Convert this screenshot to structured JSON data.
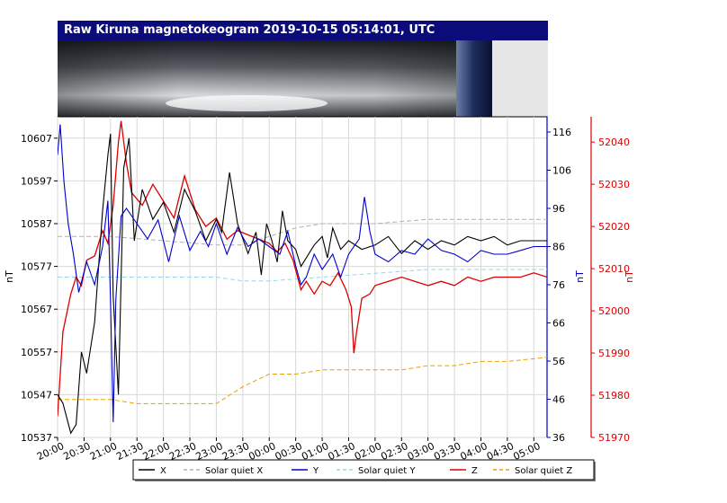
{
  "header": {
    "title": "Raw Kiruna magnetokeogram 2019-10-15 05:14:01, UTC"
  },
  "colors": {
    "title_bar": "#0b0b7a",
    "x": "#000000",
    "y": "#0000cc",
    "z": "#dd0000",
    "solar_quiet_x": "#b0b0b0",
    "solar_quiet_y": "#99d6e6",
    "solar_quiet_z": "#e6a000",
    "grid": "#d8d8d8"
  },
  "legend": {
    "items": [
      {
        "label": "X",
        "color": "#000000",
        "dash": false
      },
      {
        "label": "Solar quiet X",
        "color": "#b0b0b0",
        "dash": true
      },
      {
        "label": "Y",
        "color": "#0000cc",
        "dash": false
      },
      {
        "label": "Solar quiet Y",
        "color": "#99d6e6",
        "dash": true
      },
      {
        "label": "Z",
        "color": "#dd0000",
        "dash": false
      },
      {
        "label": "Solar quiet Z",
        "color": "#e6a000",
        "dash": true
      }
    ]
  },
  "chart_data": {
    "type": "line",
    "grid": true,
    "legend_position": "bottom",
    "x_ticks": [
      "20:00",
      "20:30",
      "21:00",
      "21:30",
      "22:00",
      "22:30",
      "23:00",
      "23:30",
      "00:00",
      "00:30",
      "01:00",
      "01:30",
      "02:00",
      "02:30",
      "03:00",
      "03:30",
      "04:00",
      "04:30",
      "05:00"
    ],
    "x_range_hours": [
      0,
      9.25
    ],
    "axes": {
      "x_left": {
        "label": "nT",
        "ylim": [
          10537,
          10612
        ],
        "ticks": [
          10537,
          10547,
          10557,
          10567,
          10577,
          10587,
          10597,
          10607
        ]
      },
      "y_right": {
        "label": "nT",
        "ylim": [
          36,
          120
        ],
        "ticks": [
          36,
          46,
          56,
          66,
          76,
          86,
          96,
          106,
          116
        ]
      },
      "z_right": {
        "label": "nT",
        "ylim": [
          51970,
          52046
        ],
        "ticks": [
          51970,
          51980,
          51990,
          52000,
          52010,
          52020,
          52030,
          52040
        ]
      }
    },
    "series": [
      {
        "name": "X",
        "axis": "x_left",
        "points": [
          [
            0,
            10547
          ],
          [
            0.1,
            10545
          ],
          [
            0.25,
            10538
          ],
          [
            0.35,
            10540
          ],
          [
            0.45,
            10557
          ],
          [
            0.55,
            10552
          ],
          [
            0.7,
            10564
          ],
          [
            0.85,
            10590
          ],
          [
            0.95,
            10603
          ],
          [
            1.0,
            10608
          ],
          [
            1.05,
            10570
          ],
          [
            1.15,
            10547
          ],
          [
            1.25,
            10600
          ],
          [
            1.35,
            10607
          ],
          [
            1.45,
            10583
          ],
          [
            1.6,
            10595
          ],
          [
            1.8,
            10588
          ],
          [
            2.0,
            10592
          ],
          [
            2.2,
            10585
          ],
          [
            2.4,
            10595
          ],
          [
            2.6,
            10590
          ],
          [
            2.8,
            10583
          ],
          [
            3.0,
            10588
          ],
          [
            3.1,
            10585
          ],
          [
            3.25,
            10599
          ],
          [
            3.4,
            10587
          ],
          [
            3.6,
            10580
          ],
          [
            3.75,
            10585
          ],
          [
            3.85,
            10575
          ],
          [
            3.95,
            10587
          ],
          [
            4.05,
            10583
          ],
          [
            4.15,
            10578
          ],
          [
            4.25,
            10590
          ],
          [
            4.35,
            10583
          ],
          [
            4.5,
            10581
          ],
          [
            4.6,
            10577
          ],
          [
            4.7,
            10579
          ],
          [
            4.85,
            10582
          ],
          [
            5.0,
            10584
          ],
          [
            5.1,
            10579
          ],
          [
            5.2,
            10586
          ],
          [
            5.35,
            10581
          ],
          [
            5.5,
            10583
          ],
          [
            5.75,
            10581
          ],
          [
            6.0,
            10582
          ],
          [
            6.25,
            10584
          ],
          [
            6.5,
            10580
          ],
          [
            6.75,
            10583
          ],
          [
            7.0,
            10581
          ],
          [
            7.25,
            10583
          ],
          [
            7.5,
            10582
          ],
          [
            7.75,
            10584
          ],
          [
            8.0,
            10583
          ],
          [
            8.25,
            10584
          ],
          [
            8.5,
            10582
          ],
          [
            8.75,
            10583
          ],
          [
            9.0,
            10583
          ],
          [
            9.25,
            10583
          ]
        ]
      },
      {
        "name": "Solar quiet X",
        "axis": "x_left",
        "points": [
          [
            0,
            10584
          ],
          [
            1,
            10584
          ],
          [
            2,
            10583
          ],
          [
            3,
            10582
          ],
          [
            3.5,
            10582
          ],
          [
            4,
            10584
          ],
          [
            4.5,
            10586
          ],
          [
            5,
            10587
          ],
          [
            6,
            10587
          ],
          [
            7,
            10588
          ],
          [
            8,
            10588
          ],
          [
            9.25,
            10588
          ]
        ]
      },
      {
        "name": "Y",
        "axis": "x_right_y",
        "points": [
          [
            0,
            110
          ],
          [
            0.05,
            118
          ],
          [
            0.12,
            103
          ],
          [
            0.2,
            92
          ],
          [
            0.3,
            84
          ],
          [
            0.4,
            74
          ],
          [
            0.55,
            82
          ],
          [
            0.7,
            76
          ],
          [
            0.85,
            86
          ],
          [
            0.95,
            98
          ],
          [
            1.0,
            72
          ],
          [
            1.05,
            40
          ],
          [
            1.1,
            72
          ],
          [
            1.2,
            94
          ],
          [
            1.3,
            96
          ],
          [
            1.5,
            92
          ],
          [
            1.7,
            88
          ],
          [
            1.9,
            93
          ],
          [
            2.1,
            82
          ],
          [
            2.3,
            94
          ],
          [
            2.5,
            85
          ],
          [
            2.7,
            90
          ],
          [
            2.85,
            86
          ],
          [
            3.0,
            92
          ],
          [
            3.2,
            84
          ],
          [
            3.4,
            91
          ],
          [
            3.6,
            86
          ],
          [
            3.8,
            88
          ],
          [
            4.0,
            86
          ],
          [
            4.2,
            84
          ],
          [
            4.35,
            90
          ],
          [
            4.5,
            81
          ],
          [
            4.6,
            76
          ],
          [
            4.7,
            78
          ],
          [
            4.85,
            84
          ],
          [
            5.0,
            80
          ],
          [
            5.2,
            84
          ],
          [
            5.35,
            78
          ],
          [
            5.5,
            84
          ],
          [
            5.7,
            88
          ],
          [
            5.8,
            99
          ],
          [
            5.9,
            90
          ],
          [
            6.0,
            84
          ],
          [
            6.25,
            82
          ],
          [
            6.5,
            85
          ],
          [
            6.75,
            84
          ],
          [
            7.0,
            88
          ],
          [
            7.25,
            85
          ],
          [
            7.5,
            84
          ],
          [
            7.75,
            82
          ],
          [
            8.0,
            85
          ],
          [
            8.25,
            84
          ],
          [
            8.5,
            84
          ],
          [
            8.75,
            85
          ],
          [
            9.0,
            86
          ],
          [
            9.25,
            86
          ]
        ]
      },
      {
        "name": "Solar quiet Y",
        "axis": "y_right",
        "points": [
          [
            0,
            78
          ],
          [
            1,
            78
          ],
          [
            2,
            78
          ],
          [
            3,
            78
          ],
          [
            3.5,
            77
          ],
          [
            4,
            77
          ],
          [
            5,
            78
          ],
          [
            6,
            79
          ],
          [
            7,
            80
          ],
          [
            8,
            80
          ],
          [
            9.25,
            80
          ]
        ]
      },
      {
        "name": "Z",
        "axis": "z_right",
        "points": [
          [
            0,
            51975
          ],
          [
            0.1,
            51995
          ],
          [
            0.25,
            52004
          ],
          [
            0.35,
            52008
          ],
          [
            0.45,
            52006
          ],
          [
            0.55,
            52012
          ],
          [
            0.7,
            52013
          ],
          [
            0.85,
            52019
          ],
          [
            0.95,
            52016
          ],
          [
            1.05,
            52025
          ],
          [
            1.15,
            52040
          ],
          [
            1.2,
            52045
          ],
          [
            1.3,
            52035
          ],
          [
            1.4,
            52028
          ],
          [
            1.6,
            52025
          ],
          [
            1.8,
            52030
          ],
          [
            2.0,
            52026
          ],
          [
            2.2,
            52022
          ],
          [
            2.4,
            52032
          ],
          [
            2.6,
            52024
          ],
          [
            2.8,
            52020
          ],
          [
            3.0,
            52022
          ],
          [
            3.2,
            52017
          ],
          [
            3.4,
            52019
          ],
          [
            3.6,
            52018
          ],
          [
            3.8,
            52017
          ],
          [
            4.0,
            52016
          ],
          [
            4.15,
            52014
          ],
          [
            4.3,
            52016
          ],
          [
            4.45,
            52012
          ],
          [
            4.6,
            52005
          ],
          [
            4.7,
            52007
          ],
          [
            4.85,
            52004
          ],
          [
            5.0,
            52007
          ],
          [
            5.15,
            52006
          ],
          [
            5.3,
            52009
          ],
          [
            5.45,
            52005
          ],
          [
            5.55,
            52001
          ],
          [
            5.6,
            51990
          ],
          [
            5.65,
            51995
          ],
          [
            5.75,
            52003
          ],
          [
            5.9,
            52004
          ],
          [
            6.0,
            52006
          ],
          [
            6.25,
            52007
          ],
          [
            6.5,
            52008
          ],
          [
            6.75,
            52007
          ],
          [
            7.0,
            52006
          ],
          [
            7.25,
            52007
          ],
          [
            7.5,
            52006
          ],
          [
            7.75,
            52008
          ],
          [
            8.0,
            52007
          ],
          [
            8.25,
            52008
          ],
          [
            8.5,
            52008
          ],
          [
            8.75,
            52008
          ],
          [
            9.0,
            52009
          ],
          [
            9.25,
            52008
          ]
        ]
      },
      {
        "name": "Solar quiet Z",
        "axis": "z_right",
        "points": [
          [
            0,
            51979
          ],
          [
            0.5,
            51979
          ],
          [
            1.0,
            51979
          ],
          [
            1.5,
            51978
          ],
          [
            2.0,
            51978
          ],
          [
            2.5,
            51978
          ],
          [
            3.0,
            51978
          ],
          [
            3.5,
            51982
          ],
          [
            4.0,
            51985
          ],
          [
            4.5,
            51985
          ],
          [
            5.0,
            51986
          ],
          [
            5.5,
            51986
          ],
          [
            6.0,
            51986
          ],
          [
            6.5,
            51986
          ],
          [
            7.0,
            51987
          ],
          [
            7.5,
            51987
          ],
          [
            8.0,
            51988
          ],
          [
            8.5,
            51988
          ],
          [
            9.25,
            51989
          ]
        ]
      }
    ]
  }
}
